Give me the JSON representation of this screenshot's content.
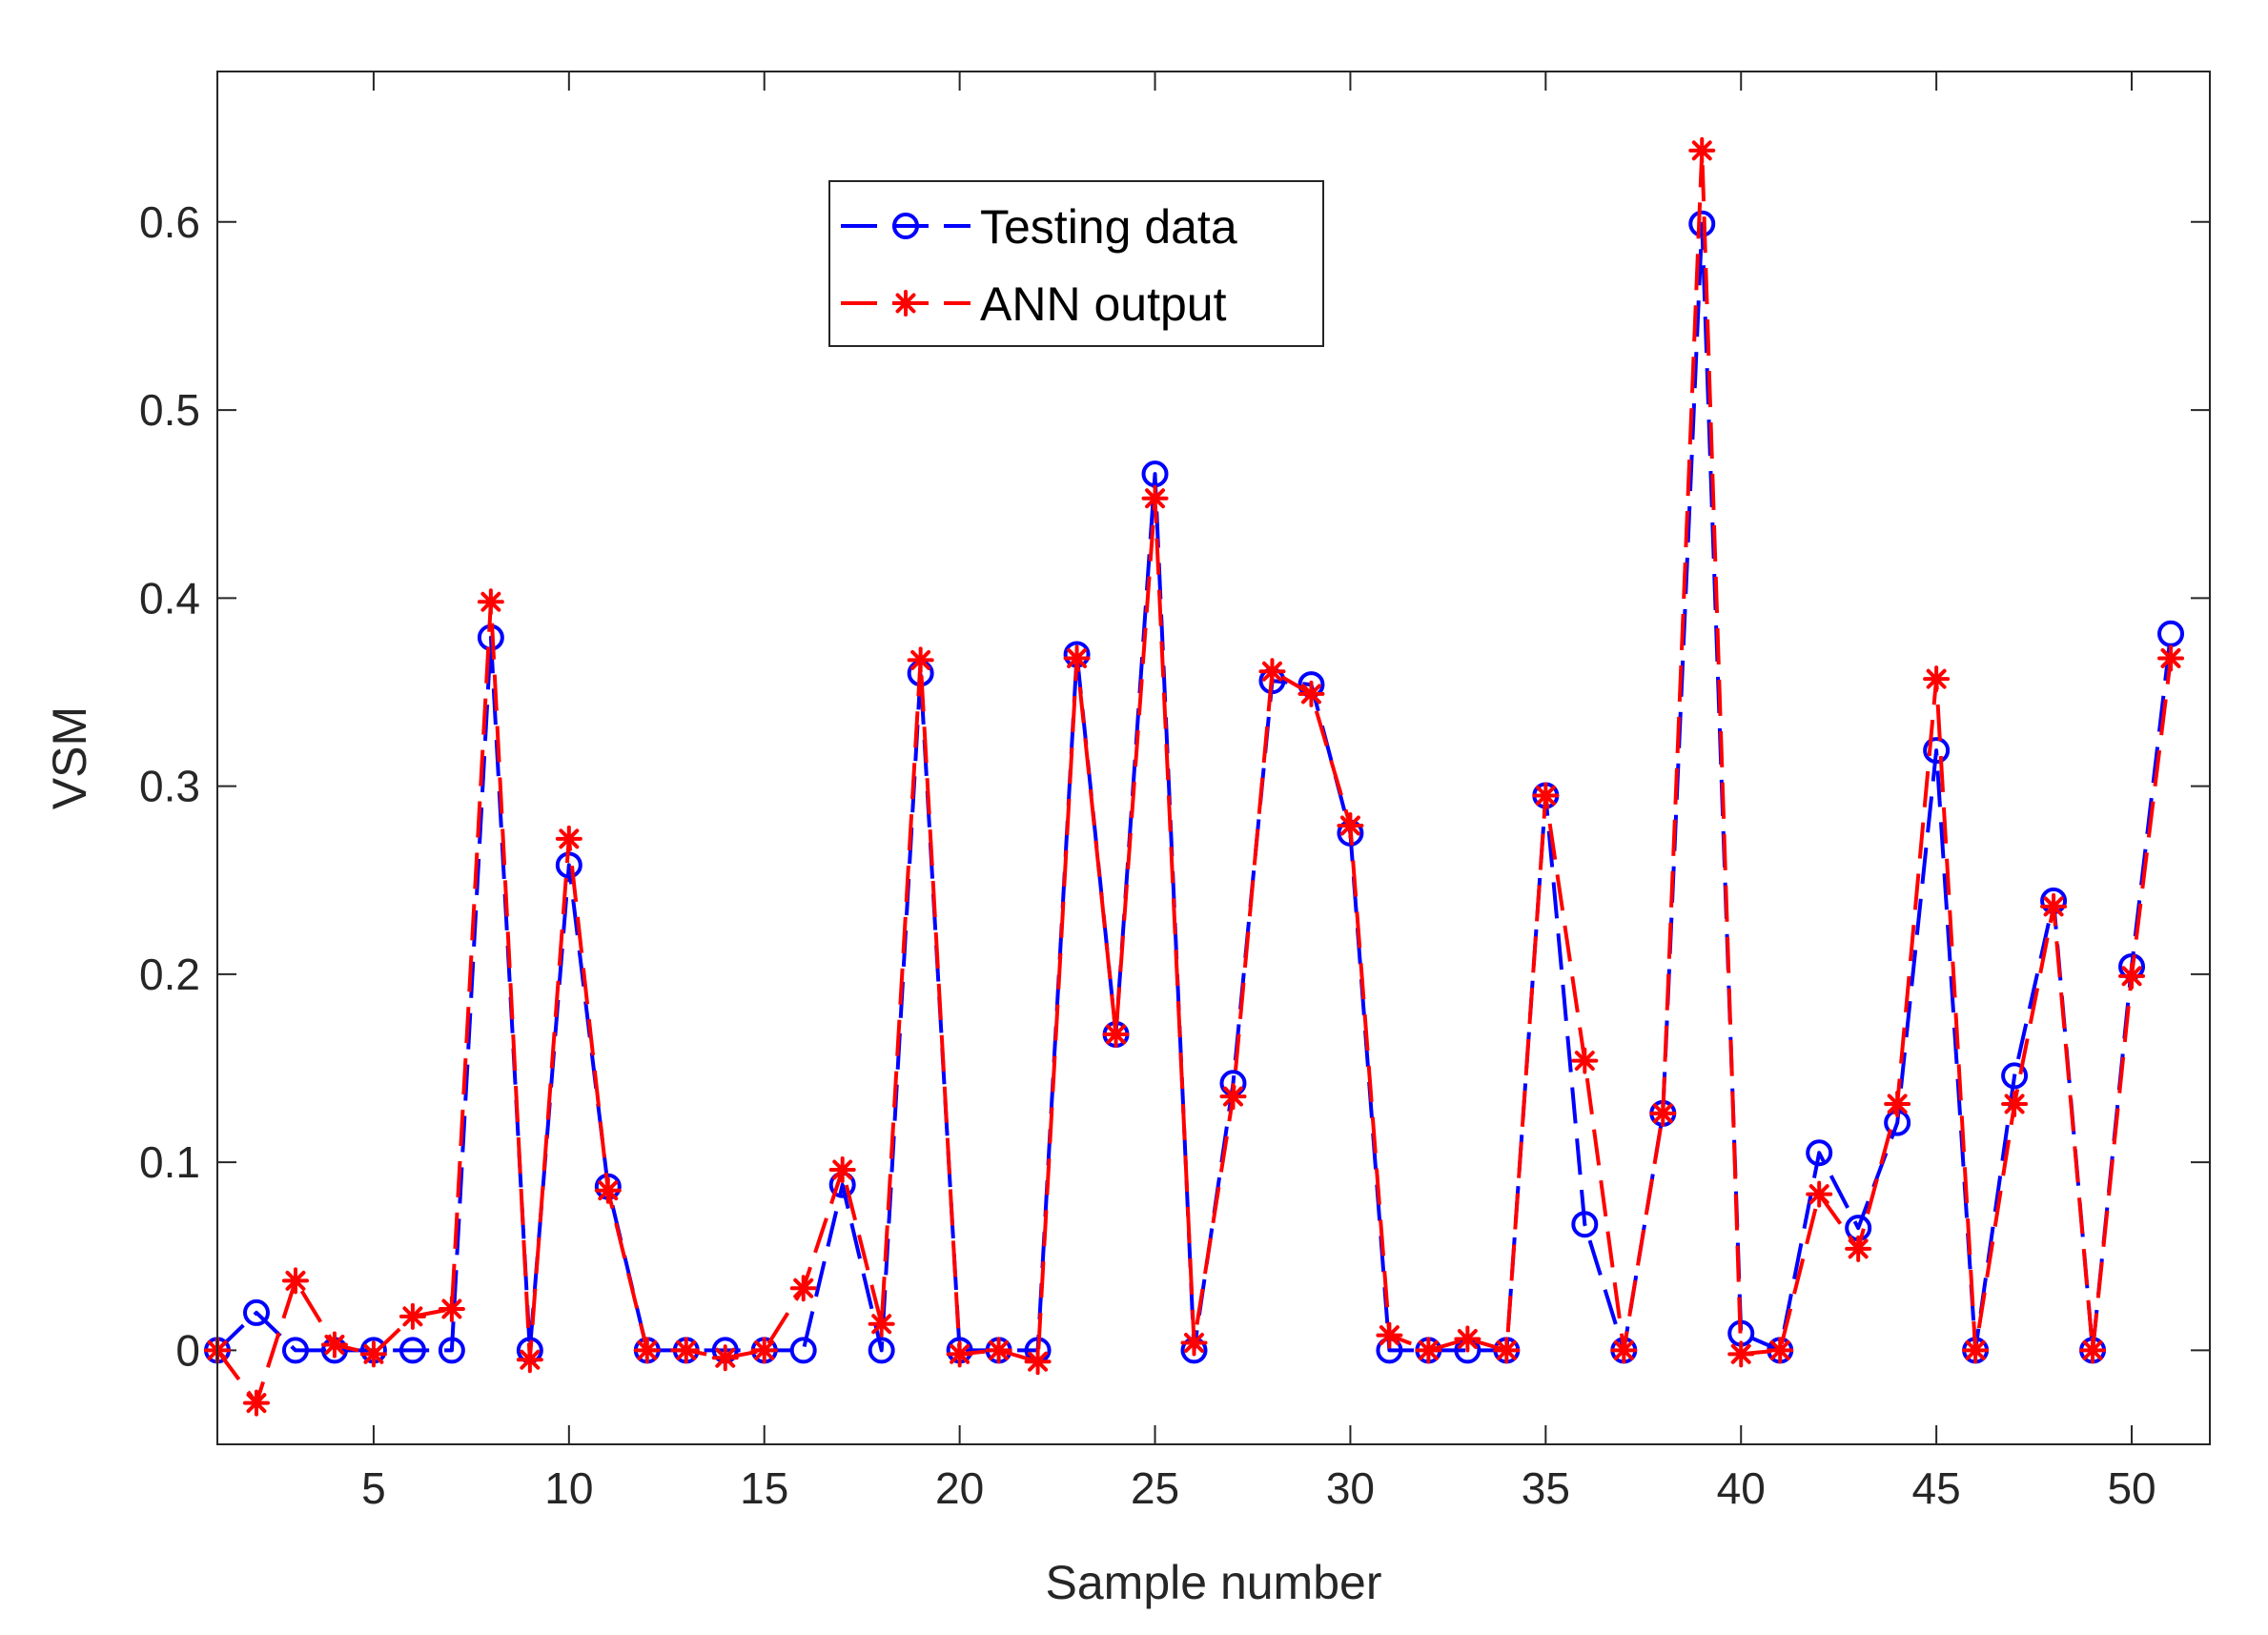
{
  "chart_data": {
    "type": "line",
    "title": "",
    "xlabel": "Sample number",
    "ylabel": "VSM",
    "xlim": [
      1,
      52
    ],
    "ylim": [
      -0.05,
      0.68
    ],
    "xticks": [
      5,
      10,
      15,
      20,
      25,
      30,
      35,
      40,
      45,
      50
    ],
    "yticks": [
      0,
      0.1,
      0.2,
      0.3,
      0.4,
      0.5,
      0.6
    ],
    "xtick_labels": [
      "5",
      "10",
      "15",
      "20",
      "25",
      "30",
      "35",
      "40",
      "45",
      "50"
    ],
    "ytick_labels": [
      "0",
      "0.1",
      "0.2",
      "0.3",
      "0.4",
      "0.5",
      "0.6"
    ],
    "grid": false,
    "legend_position": "top-center",
    "x": [
      1,
      2,
      3,
      4,
      5,
      6,
      7,
      8,
      9,
      10,
      11,
      12,
      13,
      14,
      15,
      16,
      17,
      18,
      19,
      20,
      21,
      22,
      23,
      24,
      25,
      26,
      27,
      28,
      29,
      30,
      31,
      32,
      33,
      34,
      35,
      36,
      37,
      38,
      39,
      40,
      41,
      42,
      43,
      44,
      45,
      46,
      47,
      48,
      49,
      50,
      51
    ],
    "series": [
      {
        "name": "Testing data",
        "color": "#0000ff",
        "marker": "circle",
        "values": [
          0,
          0.02,
          0,
          0,
          0,
          0,
          0,
          0.379,
          0,
          0.258,
          0.087,
          0,
          0,
          0,
          0,
          0,
          0.088,
          0,
          0.36,
          0,
          0,
          0,
          0.37,
          0.168,
          0.466,
          0,
          0.142,
          0.356,
          0.354,
          0.275,
          0,
          0,
          0,
          0,
          0.295,
          0.067,
          0,
          0.126,
          0.599,
          0.009,
          0,
          0.105,
          0.065,
          0.121,
          0.319,
          0,
          0.146,
          0.239,
          0,
          0.204,
          0.381
        ]
      },
      {
        "name": "ANN output",
        "color": "#ff0000",
        "marker": "asterisk",
        "values": [
          0,
          -0.028,
          0.037,
          0.003,
          -0.002,
          0.018,
          0.022,
          0.398,
          -0.005,
          0.272,
          0.085,
          0,
          0,
          -0.004,
          0,
          0.033,
          0.096,
          0.014,
          0.367,
          -0.002,
          0,
          -0.006,
          0.368,
          0.168,
          0.453,
          0.004,
          0.135,
          0.361,
          0.349,
          0.279,
          0.008,
          0,
          0.006,
          0,
          0.295,
          0.154,
          0,
          0.126,
          0.638,
          -0.002,
          0,
          0.083,
          0.054,
          0.131,
          0.357,
          0,
          0.131,
          0.236,
          0,
          0.199,
          0.368
        ]
      }
    ]
  }
}
